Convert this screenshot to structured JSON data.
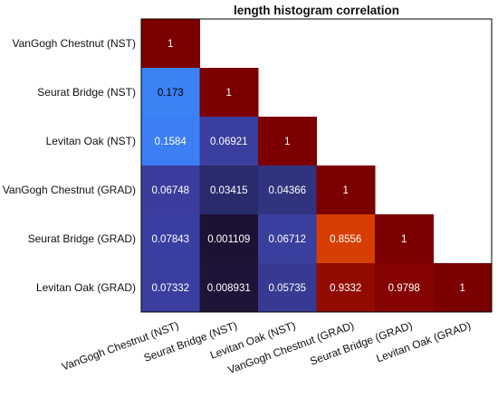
{
  "chart_data": {
    "type": "heatmap",
    "title": "length histogram correlation",
    "row_labels": [
      "VanGogh Chestnut (NST)",
      "Seurat Bridge  (NST)",
      "Levitan Oak  (NST)",
      "VanGogh Chestnut (GRAD)",
      "Seurat Bridge (GRAD)",
      "Levitan Oak (GRAD)"
    ],
    "col_labels": [
      "VanGogh Chestnut (NST)",
      "Seurat Bridge  (NST)",
      "Levitan Oak  (NST)",
      "VanGogh Chestnut (GRAD)",
      "Seurat Bridge (GRAD)",
      "Levitan Oak (GRAD)"
    ],
    "values": [
      [
        1,
        null,
        null,
        null,
        null,
        null
      ],
      [
        0.173,
        1,
        null,
        null,
        null,
        null
      ],
      [
        0.1584,
        0.06921,
        1,
        null,
        null,
        null
      ],
      [
        0.06748,
        0.03415,
        0.04366,
        1,
        null,
        null
      ],
      [
        0.07843,
        0.001109,
        0.06712,
        0.8556,
        1,
        null
      ],
      [
        0.07332,
        0.008931,
        0.05735,
        0.9332,
        0.9798,
        1
      ]
    ],
    "value_labels": [
      [
        "1",
        "",
        "",
        "",
        "",
        ""
      ],
      [
        "0.173",
        "1",
        "",
        "",
        "",
        ""
      ],
      [
        "0.1584",
        "0.06921",
        "1",
        "",
        "",
        ""
      ],
      [
        "0.06748",
        "0.03415",
        "0.04366",
        "1",
        "",
        ""
      ],
      [
        "0.07843",
        "0.001109",
        "0.06712",
        "0.8556",
        "1",
        ""
      ],
      [
        "0.07332",
        "0.008931",
        "0.05735",
        "0.9332",
        "0.9798",
        "1"
      ]
    ],
    "colors": [
      [
        "#7c0000",
        null,
        null,
        null,
        null,
        null
      ],
      [
        "#3b82f4",
        "#7c0000",
        null,
        null,
        null,
        null
      ],
      [
        "#3c7ef3",
        "#3a3e9c",
        "#7c0000",
        null,
        null,
        null
      ],
      [
        "#3a3d9b",
        "#2a2b6d",
        "#30337d",
        "#7c0000",
        null,
        null
      ],
      [
        "#393ea1",
        "#1d1233",
        "#3a3e9c",
        "#d63e04",
        "#7c0000",
        null
      ],
      [
        "#393e9f",
        "#1f1438",
        "#363a93",
        "#910b00",
        "#850300",
        "#7c0000"
      ]
    ],
    "label_colors": [
      [
        "#ffffff",
        null,
        null,
        null,
        null,
        null
      ],
      [
        "#000000",
        "#ffffff",
        null,
        null,
        null,
        null
      ],
      [
        "#ffffff",
        "#ffffff",
        "#ffffff",
        null,
        null,
        null
      ],
      [
        "#ffffff",
        "#ffffff",
        "#ffffff",
        "#ffffff",
        null,
        null
      ],
      [
        "#ffffff",
        "#ffffff",
        "#ffffff",
        "#ffffff",
        "#ffffff",
        null
      ],
      [
        "#ffffff",
        "#ffffff",
        "#ffffff",
        "#ffffff",
        "#ffffff",
        "#ffffff"
      ]
    ]
  }
}
